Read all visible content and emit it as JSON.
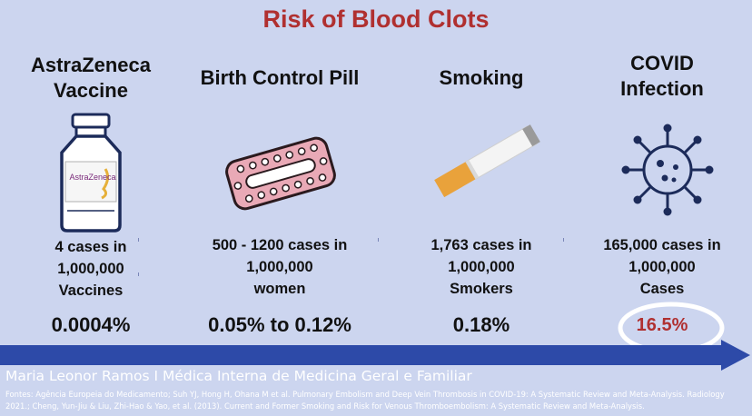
{
  "title": "Risk of Blood Clots",
  "columns": [
    {
      "heading": [
        "AstraZeneca",
        "Vaccine"
      ],
      "cases": [
        "4 cases in",
        "1,000,000",
        "Vaccines"
      ],
      "risk": "0.0004%",
      "icon": "vaccine-vial-icon",
      "vial_label": "AstraZeneca"
    },
    {
      "heading": [
        "Birth Control Pill"
      ],
      "cases": [
        "500 - 1200 cases in",
        "1,000,000",
        "women"
      ],
      "risk": "0.05% to 0.12%",
      "icon": "pill-pack-icon"
    },
    {
      "heading": [
        "Smoking"
      ],
      "cases": [
        "1,763 cases in",
        "1,000,000",
        "Smokers"
      ],
      "risk": "0.18%",
      "icon": "cigarette-icon"
    },
    {
      "heading": [
        "COVID",
        "Infection"
      ],
      "cases": [
        "165,000 cases in",
        "1,000,000",
        "Cases"
      ],
      "risk": "16.5%",
      "icon": "virus-icon",
      "risk_color": "#b03030"
    }
  ],
  "author": "Maria Leonor Ramos I Médica Interna de Medicina Geral e Familiar",
  "sources": "Fontes: Agência Europeia do Medicamento; Suh YJ, Hong H, Ohana M et al. Pulmonary Embolism and Deep Vein Thrombosis in COVID-19: A Systematic Review and Meta-Analysis. Radiology 2021.; Cheng, Yun-Jiu & Liu, Zhi-Hao & Yao, et al. (2013). Current and Former Smoking and Risk for Venous Thromboembolism: A Systematic Review and Meta-Analysis.",
  "colors": {
    "title": "#b03030",
    "background": "#ccd5ef",
    "arrow": "#2d4aa8",
    "covid_risk": "#b03030"
  }
}
